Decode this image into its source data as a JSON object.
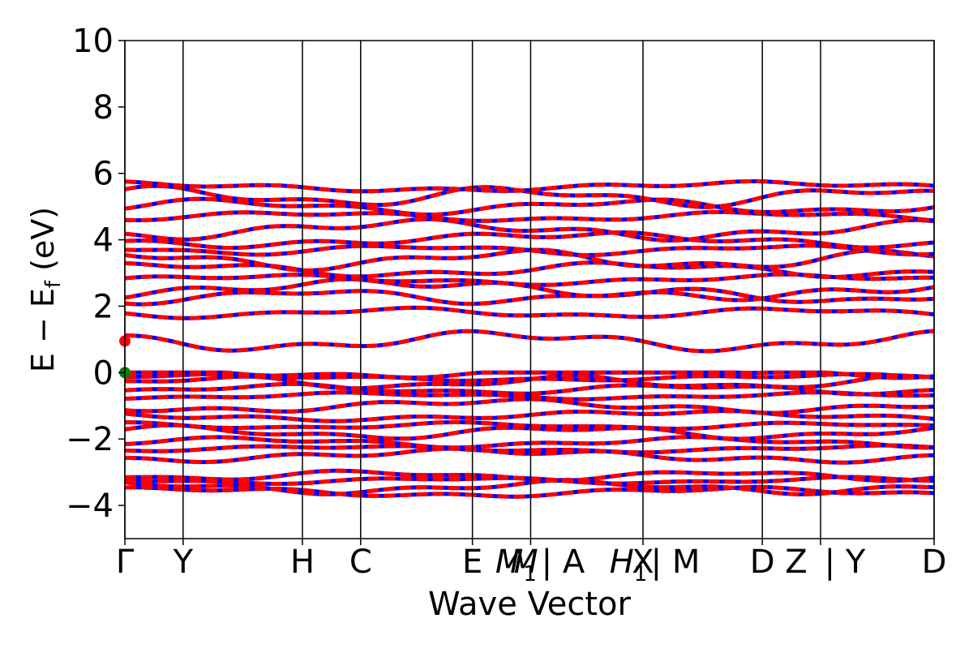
{
  "chart_data": {
    "type": "line",
    "title": "",
    "xlabel": "Wave Vector",
    "ylabel": "E − E",
    "ylabel_sub": "f",
    "ylabel_unit": " (eV)",
    "ylim": [
      -5,
      10
    ],
    "yticks": [
      {
        "value": -4,
        "label": "−4"
      },
      {
        "value": -2,
        "label": "−2"
      },
      {
        "value": 0,
        "label": "0"
      },
      {
        "value": 2,
        "label": "2"
      },
      {
        "value": 4,
        "label": "4"
      },
      {
        "value": 6,
        "label": "6"
      },
      {
        "value": 8,
        "label": "8"
      },
      {
        "value": 10,
        "label": "10"
      }
    ],
    "xlim": [
      0,
      13.9
    ],
    "kpoints": [
      {
        "x": 0.0,
        "label": "Γ"
      },
      {
        "x": 1.0,
        "label": "Y"
      },
      {
        "x": 3.05,
        "label": "H"
      },
      {
        "x": 4.05,
        "label": "C"
      },
      {
        "x": 5.97,
        "label": "E"
      },
      {
        "x": 6.97,
        "label": "M",
        "sub": "1",
        "italic": true
      },
      {
        "x": 6.97,
        "label": "M",
        "italic": true
      },
      {
        "x": 6.97,
        "label": "| A"
      },
      {
        "x": 8.9,
        "label": "H",
        "sub": "1",
        "italic": true
      },
      {
        "x": 8.9,
        "label": "X"
      },
      {
        "x": 8.9,
        "label": "| M"
      },
      {
        "x": 10.95,
        "label": "D"
      },
      {
        "x": 11.95,
        "label": "Z"
      },
      {
        "x": 11.95,
        "label": "| Y"
      },
      {
        "x": 13.9,
        "label": "D"
      }
    ],
    "grid": false,
    "series_colors": {
      "band": "#0000ff",
      "projection": "#ff0000",
      "cbm": "#ff0000",
      "vbm": "#008000"
    },
    "markers": {
      "cbm": {
        "x": 0,
        "y": 0.95
      },
      "vbm": {
        "x": 0,
        "y": 0
      }
    },
    "valence_band_energies_at_gamma": [
      -3.6,
      -3.45,
      -3.25,
      -3.1,
      -2.5,
      -2.3,
      -2.1,
      -1.8,
      -1.6,
      -1.3,
      -1.0,
      -0.7,
      -0.5,
      -0.3,
      -0.15,
      0
    ],
    "conduction_band_energies_at_gamma": [
      0.95,
      1.8,
      2.3,
      2.5,
      2.8,
      3.1,
      3.4,
      3.7,
      4.0,
      4.3,
      4.7,
      5.0,
      5.3,
      5.6
    ],
    "band_dispersion": "flat",
    "spin_projection": true
  }
}
